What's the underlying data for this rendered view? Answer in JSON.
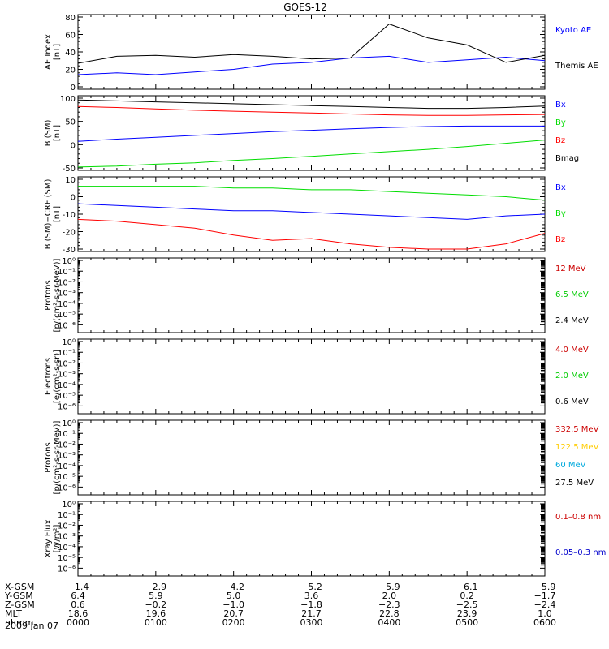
{
  "title": "GOES-12",
  "date_label": "2009 Jan 07",
  "chart_data": [
    {
      "type": "line",
      "ylabel_lines": [
        "AE Index",
        "[nT]"
      ],
      "ylim": [
        0,
        80
      ],
      "scale": "linear",
      "ytick_labels": [
        "0",
        "20",
        "40",
        "60",
        "80"
      ],
      "ytick_values": [
        0,
        20,
        40,
        60,
        80
      ],
      "x": [
        "0000",
        "0030",
        "0100",
        "0130",
        "0200",
        "0230",
        "0300",
        "0330",
        "0400",
        "0430",
        "0500",
        "0530",
        "0600"
      ],
      "series": [
        {
          "name": "Kyoto AE",
          "color": "#0000ff",
          "values": [
            14,
            16,
            14,
            17,
            20,
            26,
            28,
            33,
            35,
            28,
            31,
            34,
            30
          ]
        },
        {
          "name": "Themis AE",
          "color": "#000000",
          "values": [
            27,
            35,
            36,
            34,
            37,
            35,
            32,
            33,
            72,
            56,
            48,
            28,
            36
          ]
        }
      ]
    },
    {
      "type": "line",
      "ylabel_lines": [
        "B (SM)",
        "[nT]"
      ],
      "ylim": [
        -50,
        100
      ],
      "scale": "linear",
      "ytick_labels": [
        "-50",
        "0",
        "50",
        "100"
      ],
      "ytick_values": [
        -50,
        0,
        50,
        100
      ],
      "x": [
        "0000",
        "0030",
        "0100",
        "0130",
        "0200",
        "0230",
        "0300",
        "0330",
        "0400",
        "0430",
        "0500",
        "0530",
        "0600"
      ],
      "series": [
        {
          "name": "Bx",
          "color": "#0000ff",
          "values": [
            7,
            12,
            16,
            20,
            24,
            28,
            31,
            34,
            37,
            39,
            40,
            40,
            40
          ]
        },
        {
          "name": "By",
          "color": "#00dd00",
          "values": [
            -48,
            -46,
            -42,
            -39,
            -34,
            -30,
            -25,
            -20,
            -15,
            -10,
            -4,
            3,
            10
          ]
        },
        {
          "name": "Bz",
          "color": "#ff0000",
          "values": [
            82,
            80,
            77,
            74,
            72,
            70,
            68,
            66,
            64,
            63,
            63,
            64,
            65
          ]
        },
        {
          "name": "Bmag",
          "color": "#000000",
          "values": [
            96,
            94,
            92,
            90,
            88,
            86,
            84,
            82,
            80,
            78,
            78,
            80,
            83
          ]
        }
      ]
    },
    {
      "type": "line",
      "ylabel_lines": [
        "B (SM)−CRF (SM)",
        "[nT]"
      ],
      "ylim": [
        -30,
        10
      ],
      "scale": "linear",
      "ytick_labels": [
        "-30",
        "-20",
        "-10",
        "0",
        "10"
      ],
      "ytick_values": [
        -30,
        -20,
        -10,
        0,
        10
      ],
      "x": [
        "0000",
        "0030",
        "0100",
        "0130",
        "0200",
        "0230",
        "0300",
        "0330",
        "0400",
        "0430",
        "0500",
        "0530",
        "0600"
      ],
      "series": [
        {
          "name": "Bx",
          "color": "#0000ff",
          "values": [
            -4,
            -5,
            -6,
            -7,
            -8,
            -8,
            -9,
            -10,
            -11,
            -12,
            -13,
            -11,
            -10
          ]
        },
        {
          "name": "By",
          "color": "#00dd00",
          "values": [
            6,
            6,
            6,
            6,
            5,
            5,
            4,
            4,
            3,
            2,
            1,
            0,
            -2
          ]
        },
        {
          "name": "Bz",
          "color": "#ff0000",
          "values": [
            -13,
            -14,
            -16,
            -18,
            -22,
            -25,
            -24,
            -27,
            -29,
            -30,
            -30,
            -27,
            -21
          ]
        }
      ]
    },
    {
      "type": "line",
      "ylabel_lines": [
        "Protons",
        "[p/(cm²-s-sr-MeV)]"
      ],
      "scale": "log",
      "ytick_labels": [
        "10⁰",
        "10⁻¹",
        "10⁻²",
        "10⁻³",
        "10⁻⁴",
        "10⁻⁵",
        "10⁻⁶"
      ],
      "ytick_values": [
        0,
        -1,
        -2,
        -3,
        -4,
        -5,
        -6
      ],
      "series": [
        {
          "name": "12 MeV",
          "color": "#cc0000",
          "values": []
        },
        {
          "name": "6.5 MeV",
          "color": "#00cc00",
          "values": []
        },
        {
          "name": "2.4 MeV",
          "color": "#000000",
          "values": []
        }
      ]
    },
    {
      "type": "line",
      "ylabel_lines": [
        "Electrons",
        "[e/(cm²-s-sr)]"
      ],
      "scale": "log",
      "ytick_labels": [
        "10⁰",
        "10⁻¹",
        "10⁻²",
        "10⁻³",
        "10⁻⁴",
        "10⁻⁵",
        "10⁻⁶"
      ],
      "ytick_values": [
        0,
        -1,
        -2,
        -3,
        -4,
        -5,
        -6
      ],
      "series": [
        {
          "name": "4.0 MeV",
          "color": "#cc0000",
          "values": []
        },
        {
          "name": "2.0 MeV",
          "color": "#00cc00",
          "values": []
        },
        {
          "name": "0.6 MeV",
          "color": "#000000",
          "values": []
        }
      ]
    },
    {
      "type": "line",
      "ylabel_lines": [
        "Protons",
        "[p/(cm²-s-sr-MeV)]"
      ],
      "scale": "log",
      "ytick_labels": [
        "10⁰",
        "10⁻¹",
        "10⁻²",
        "10⁻³",
        "10⁻⁴",
        "10⁻⁵",
        "10⁻⁶"
      ],
      "ytick_values": [
        0,
        -1,
        -2,
        -3,
        -4,
        -5,
        -6
      ],
      "series": [
        {
          "name": "332.5 MeV",
          "color": "#cc0000",
          "values": []
        },
        {
          "name": "122.5 MeV",
          "color": "#ffcc00",
          "values": []
        },
        {
          "name": "60 MeV",
          "color": "#00aadd",
          "values": []
        },
        {
          "name": "27.5 MeV",
          "color": "#000000",
          "values": []
        }
      ]
    },
    {
      "type": "line",
      "ylabel_lines": [
        "Xray Flux",
        "[W/m²]"
      ],
      "scale": "log",
      "ytick_labels": [
        "10⁰",
        "10⁻¹",
        "10⁻²",
        "10⁻³",
        "10⁻⁴",
        "10⁻⁵",
        "10⁻⁶"
      ],
      "ytick_values": [
        0,
        -1,
        -2,
        -3,
        -4,
        -5,
        -6
      ],
      "series": [
        {
          "name": "0.1–0.8 nm",
          "color": "#cc0000",
          "values": []
        },
        {
          "name": "0.05–0.3 nm",
          "color": "#0000cc",
          "values": []
        }
      ]
    }
  ],
  "ephemeris": {
    "labels": [
      "X-GSM",
      "Y-GSM",
      "Z-GSM",
      "MLT",
      "hhmm"
    ],
    "columns": [
      [
        "−1.4",
        "6.4",
        "0.6",
        "18.6",
        "0000"
      ],
      [
        "−2.9",
        "5.9",
        "−0.2",
        "19.6",
        "0100"
      ],
      [
        "−4.2",
        "5.0",
        "−1.0",
        "20.7",
        "0200"
      ],
      [
        "−5.2",
        "3.6",
        "−1.8",
        "21.7",
        "0300"
      ],
      [
        "−5.9",
        "2.0",
        "−2.3",
        "22.8",
        "0400"
      ],
      [
        "−6.1",
        "0.2",
        "−2.5",
        "23.9",
        "0500"
      ],
      [
        "−5.9",
        "−1.7",
        "−2.4",
        "1.0",
        "0600"
      ]
    ]
  }
}
